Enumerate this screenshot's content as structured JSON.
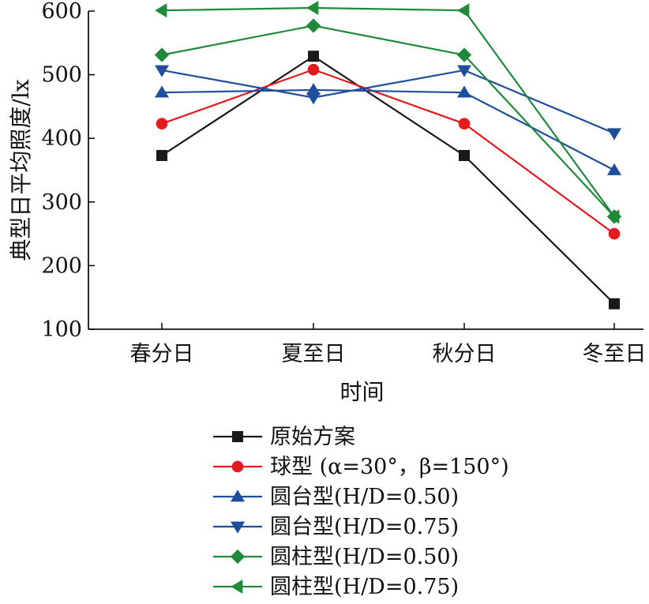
{
  "chart_data": {
    "type": "line",
    "categories": [
      "春分日",
      "夏至日",
      "秋分日",
      "冬至日"
    ],
    "xlabel": "时间",
    "ylabel": "典型日平均照度/lx",
    "ylim": [
      100,
      600
    ],
    "yticks": [
      "100",
      "200",
      "300",
      "400",
      "500",
      "600"
    ],
    "grid": false,
    "legend_position": "bottom",
    "series": [
      {
        "name": "原始方案",
        "values": [
          373,
          529,
          373,
          140
        ],
        "color": "#1a1a1a",
        "marker": "square"
      },
      {
        "name": "球型 (α=30°，β=150°)",
        "values": [
          423,
          508,
          423,
          250
        ],
        "color": "#e41a1c",
        "marker": "circle"
      },
      {
        "name": "圆台型(H/D=0.50)",
        "values": [
          472,
          476,
          472,
          350
        ],
        "color": "#1f4e9c",
        "marker": "triangle-up"
      },
      {
        "name": "圆台型(H/D=0.75)",
        "values": [
          507,
          464,
          507,
          408
        ],
        "color": "#1f4e9c",
        "marker": "triangle-down"
      },
      {
        "name": "圆柱型(H/D=0.50)",
        "values": [
          531,
          577,
          531,
          277
        ],
        "color": "#1f8a3a",
        "marker": "diamond"
      },
      {
        "name": "圆柱型(H/D=0.75)",
        "values": [
          601,
          605,
          601,
          277
        ],
        "color": "#1f8a3a",
        "marker": "triangle-left"
      }
    ]
  }
}
